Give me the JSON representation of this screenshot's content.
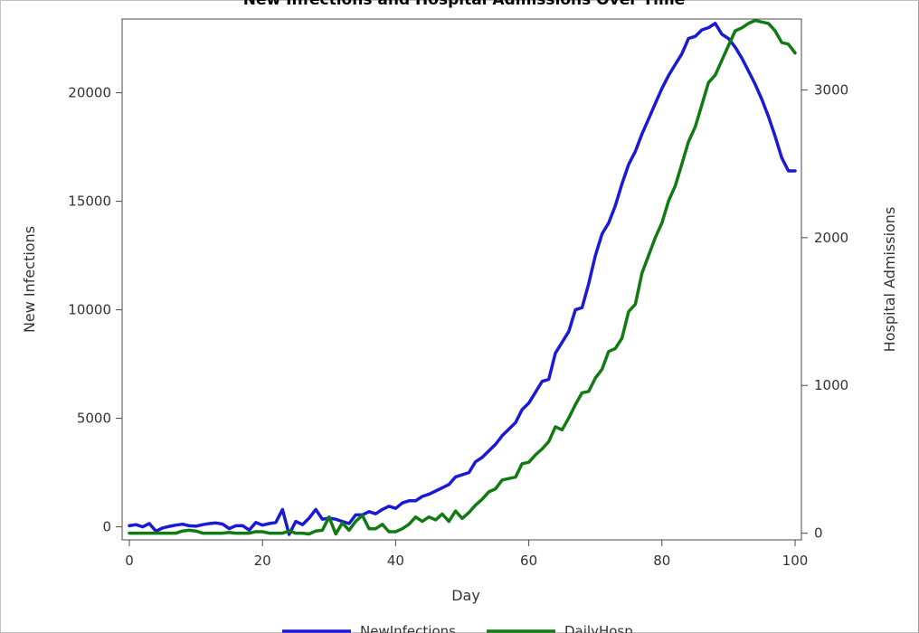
{
  "chart_data": {
    "type": "line",
    "title": "New Infections and Hospital Admissions Over Time",
    "xlabel": "Day",
    "ylabel": "New Infections",
    "y2label": "Hospital Admissions",
    "xlim": [
      0,
      100
    ],
    "ylim": [
      -600,
      23400
    ],
    "y2lim": [
      -45,
      3480
    ],
    "x_ticks": [
      0,
      20,
      40,
      60,
      80,
      100
    ],
    "y_ticks": [
      0,
      5000,
      10000,
      15000,
      20000
    ],
    "y2_ticks": [
      0,
      1000,
      2000,
      3000
    ],
    "grid": false,
    "legend_position": "bottom",
    "series": [
      {
        "name": "NewInfections",
        "axis": "left",
        "color": "#1a1ad4",
        "x": [
          0,
          1,
          2,
          3,
          4,
          5,
          6,
          7,
          8,
          9,
          10,
          11,
          12,
          13,
          14,
          15,
          16,
          17,
          18,
          19,
          20,
          21,
          22,
          23,
          24,
          25,
          26,
          27,
          28,
          29,
          30,
          31,
          32,
          33,
          34,
          35,
          36,
          37,
          38,
          39,
          40,
          41,
          42,
          43,
          44,
          45,
          46,
          47,
          48,
          49,
          50,
          51,
          52,
          53,
          54,
          55,
          56,
          57,
          58,
          59,
          60,
          61,
          62,
          63,
          64,
          65,
          66,
          67,
          68,
          69,
          70,
          71,
          72,
          73,
          74,
          75,
          76,
          77,
          78,
          79,
          80,
          81,
          82,
          83,
          84,
          85,
          86,
          87,
          88,
          89,
          90,
          91,
          92,
          93,
          94,
          95,
          96,
          97,
          98,
          99,
          100
        ],
        "values": [
          50,
          100,
          0,
          150,
          -200,
          -50,
          20,
          80,
          120,
          50,
          30,
          100,
          150,
          180,
          130,
          -80,
          50,
          60,
          -150,
          200,
          80,
          150,
          200,
          800,
          -350,
          250,
          100,
          400,
          800,
          350,
          400,
          350,
          250,
          150,
          550,
          550,
          700,
          600,
          800,
          950,
          850,
          1100,
          1200,
          1200,
          1400,
          1500,
          1650,
          1800,
          1950,
          2300,
          2400,
          2500,
          3000,
          3200,
          3500,
          3800,
          4200,
          4500,
          4800,
          5400,
          5700,
          6200,
          6700,
          6800,
          8000,
          8500,
          9000,
          10000,
          10100,
          11200,
          12500,
          13500,
          14000,
          14800,
          15800,
          16700,
          17300,
          18100,
          18800,
          19500,
          20200,
          20800,
          21300,
          21800,
          22500,
          22600,
          22900,
          23000,
          23200,
          22700,
          22500,
          22100,
          21600,
          21000,
          20400,
          19700,
          18900,
          18000,
          17000,
          16400,
          16400
        ]
      },
      {
        "name": "DailyHosp",
        "axis": "right",
        "color": "#127a12",
        "x": [
          0,
          1,
          2,
          3,
          4,
          5,
          6,
          7,
          8,
          9,
          10,
          11,
          12,
          13,
          14,
          15,
          16,
          17,
          18,
          19,
          20,
          21,
          22,
          23,
          24,
          25,
          26,
          27,
          28,
          29,
          30,
          31,
          32,
          33,
          34,
          35,
          36,
          37,
          38,
          39,
          40,
          41,
          42,
          43,
          44,
          45,
          46,
          47,
          48,
          49,
          50,
          51,
          52,
          53,
          54,
          55,
          56,
          57,
          58,
          59,
          60,
          61,
          62,
          63,
          64,
          65,
          66,
          67,
          68,
          69,
          70,
          71,
          72,
          73,
          74,
          75,
          76,
          77,
          78,
          79,
          80,
          81,
          82,
          83,
          84,
          85,
          86,
          87,
          88,
          89,
          90,
          91,
          92,
          93,
          94,
          95,
          96,
          97,
          98,
          99,
          100
        ],
        "values": [
          0,
          0,
          0,
          0,
          0,
          0,
          0,
          0,
          15,
          20,
          15,
          0,
          0,
          0,
          0,
          5,
          0,
          0,
          0,
          10,
          10,
          0,
          0,
          0,
          15,
          0,
          0,
          -5,
          15,
          20,
          110,
          -5,
          70,
          20,
          80,
          120,
          30,
          30,
          60,
          10,
          10,
          30,
          60,
          110,
          80,
          110,
          90,
          130,
          80,
          150,
          100,
          140,
          190,
          230,
          280,
          300,
          360,
          370,
          380,
          470,
          480,
          530,
          570,
          620,
          720,
          700,
          780,
          870,
          950,
          960,
          1050,
          1110,
          1230,
          1250,
          1320,
          1500,
          1550,
          1760,
          1880,
          2000,
          2100,
          2250,
          2350,
          2500,
          2650,
          2750,
          2900,
          3050,
          3100,
          3200,
          3300,
          3400,
          3420,
          3450,
          3470,
          3460,
          3450,
          3400,
          3320,
          3310,
          3250
        ]
      }
    ]
  }
}
